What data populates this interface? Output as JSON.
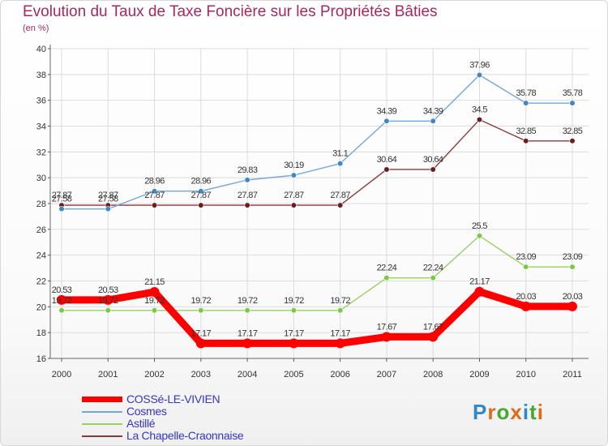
{
  "title": "Evolution du Taux de Taxe Foncière sur les Propriétés Bâties",
  "subtitle": "(en %)",
  "brand": "Proxiti",
  "chart_data": {
    "type": "line",
    "title": "Evolution du Taux de Taxe Foncière sur les Propriétés Bâties",
    "ylabel": "(en %)",
    "xlabel": "",
    "x": [
      "2000",
      "2001",
      "2002",
      "2003",
      "2004",
      "2005",
      "2006",
      "2007",
      "2008",
      "2009",
      "2010",
      "2011"
    ],
    "ylim": [
      16,
      40
    ],
    "yticks": [
      16,
      18,
      20,
      22,
      24,
      26,
      28,
      30,
      32,
      34,
      36,
      38,
      40
    ],
    "grid": true,
    "legend": "bottom-left",
    "series": [
      {
        "name": "COSSé-LE-VIVIEN",
        "color": "#ff0000",
        "values": [
          20.53,
          20.53,
          21.15,
          17.17,
          17.17,
          17.17,
          17.17,
          17.67,
          17.67,
          21.17,
          20.03,
          20.03
        ],
        "labels": [
          "20.53",
          "20.53",
          "21.15",
          "17.17",
          "17.17",
          "17.17",
          "17.17",
          "17.67",
          "17.67",
          "21.17",
          "20.03",
          "20.03"
        ]
      },
      {
        "name": "Cosmes",
        "color": "#6fa8dc",
        "values": [
          27.58,
          27.58,
          28.96,
          28.96,
          29.83,
          30.19,
          31.1,
          34.39,
          34.39,
          37.96,
          35.78,
          35.78
        ],
        "labels": [
          "27.58",
          "27.58",
          "28.96",
          "28.96",
          "29.83",
          "30.19",
          "31.1",
          "34.39",
          "34.39",
          "37.96",
          "35.78",
          "35.78"
        ]
      },
      {
        "name": "Astillé",
        "color": "#99d066",
        "values": [
          19.72,
          19.72,
          19.72,
          19.72,
          19.72,
          19.72,
          19.72,
          22.24,
          22.24,
          25.5,
          23.09,
          23.09
        ],
        "labels": [
          "19.72",
          "19.72",
          "19.72",
          "19.72",
          "19.72",
          "19.72",
          "19.72",
          "22.24",
          "22.24",
          "25.5",
          "23.09",
          "23.09"
        ]
      },
      {
        "name": "La Chapelle-Craonnaise",
        "color": "#8b3a3a",
        "values": [
          27.87,
          27.87,
          27.87,
          27.87,
          27.87,
          27.87,
          27.87,
          30.64,
          30.64,
          34.5,
          32.85,
          32.85
        ],
        "labels": [
          "27.87",
          "27.87",
          "27.87",
          "27.87",
          "27.87",
          "27.87",
          "27.87",
          "30.64",
          "30.64",
          "34.5",
          "32.85",
          "32.85"
        ]
      }
    ]
  }
}
